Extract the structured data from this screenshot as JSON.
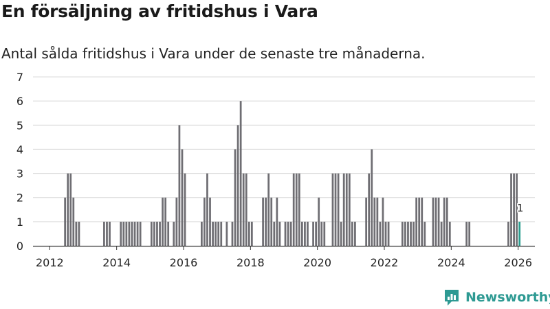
{
  "title": "En försäljning av fritidshus i Vara",
  "subtitle": "Antal sålda fritidshus i Vara under de senaste tre månaderna.",
  "brand": "Newsworthy",
  "colors": {
    "bar": "#6f6e73",
    "highlight": "#2a9d8f",
    "grid": "#d9d9d9",
    "axis": "#333333",
    "brand": "#2e9a93"
  },
  "chart_data": {
    "type": "bar",
    "ylim": [
      0,
      7
    ],
    "yticks": [
      0,
      1,
      2,
      3,
      4,
      5,
      6,
      7
    ],
    "xlim": [
      "2011-07",
      "2026-07"
    ],
    "xticks": [
      "2012",
      "2014",
      "2016",
      "2018",
      "2020",
      "2022",
      "2024",
      "2026"
    ],
    "grid": true,
    "series": [
      {
        "values": [
          [
            "2012-06",
            2
          ],
          [
            "2012-07",
            3
          ],
          [
            "2012-08",
            3
          ],
          [
            "2012-09",
            2
          ],
          [
            "2012-10",
            1
          ],
          [
            "2012-11",
            1
          ],
          [
            "2013-08",
            1
          ],
          [
            "2013-09",
            1
          ],
          [
            "2013-10",
            1
          ],
          [
            "2014-02",
            1
          ],
          [
            "2014-03",
            1
          ],
          [
            "2014-04",
            1
          ],
          [
            "2014-05",
            1
          ],
          [
            "2014-06",
            1
          ],
          [
            "2014-07",
            1
          ],
          [
            "2014-08",
            1
          ],
          [
            "2014-09",
            1
          ],
          [
            "2015-01",
            1
          ],
          [
            "2015-02",
            1
          ],
          [
            "2015-03",
            1
          ],
          [
            "2015-04",
            1
          ],
          [
            "2015-05",
            2
          ],
          [
            "2015-06",
            2
          ],
          [
            "2015-07",
            1
          ],
          [
            "2015-09",
            1
          ],
          [
            "2015-10",
            2
          ],
          [
            "2015-11",
            5
          ],
          [
            "2015-12",
            4
          ],
          [
            "2016-01",
            3
          ],
          [
            "2016-07",
            1
          ],
          [
            "2016-08",
            2
          ],
          [
            "2016-09",
            3
          ],
          [
            "2016-10",
            2
          ],
          [
            "2016-11",
            1
          ],
          [
            "2016-12",
            1
          ],
          [
            "2017-01",
            1
          ],
          [
            "2017-02",
            1
          ],
          [
            "2017-04",
            1
          ],
          [
            "2017-06",
            1
          ],
          [
            "2017-07",
            4
          ],
          [
            "2017-08",
            5
          ],
          [
            "2017-09",
            6
          ],
          [
            "2017-10",
            3
          ],
          [
            "2017-11",
            3
          ],
          [
            "2017-12",
            1
          ],
          [
            "2018-01",
            1
          ],
          [
            "2018-05",
            2
          ],
          [
            "2018-06",
            2
          ],
          [
            "2018-07",
            3
          ],
          [
            "2018-08",
            2
          ],
          [
            "2018-09",
            1
          ],
          [
            "2018-10",
            2
          ],
          [
            "2018-11",
            1
          ],
          [
            "2019-01",
            1
          ],
          [
            "2019-02",
            1
          ],
          [
            "2019-03",
            1
          ],
          [
            "2019-04",
            3
          ],
          [
            "2019-05",
            3
          ],
          [
            "2019-06",
            3
          ],
          [
            "2019-07",
            1
          ],
          [
            "2019-08",
            1
          ],
          [
            "2019-09",
            1
          ],
          [
            "2019-11",
            1
          ],
          [
            "2019-12",
            1
          ],
          [
            "2020-01",
            2
          ],
          [
            "2020-02",
            1
          ],
          [
            "2020-03",
            1
          ],
          [
            "2020-06",
            3
          ],
          [
            "2020-07",
            3
          ],
          [
            "2020-08",
            3
          ],
          [
            "2020-09",
            1
          ],
          [
            "2020-10",
            3
          ],
          [
            "2020-11",
            3
          ],
          [
            "2020-12",
            3
          ],
          [
            "2021-01",
            1
          ],
          [
            "2021-02",
            1
          ],
          [
            "2021-06",
            2
          ],
          [
            "2021-07",
            3
          ],
          [
            "2021-08",
            4
          ],
          [
            "2021-09",
            2
          ],
          [
            "2021-10",
            2
          ],
          [
            "2021-11",
            1
          ],
          [
            "2021-12",
            2
          ],
          [
            "2022-01",
            1
          ],
          [
            "2022-02",
            1
          ],
          [
            "2022-07",
            1
          ],
          [
            "2022-08",
            1
          ],
          [
            "2022-09",
            1
          ],
          [
            "2022-10",
            1
          ],
          [
            "2022-11",
            1
          ],
          [
            "2022-12",
            2
          ],
          [
            "2023-01",
            2
          ],
          [
            "2023-02",
            2
          ],
          [
            "2023-03",
            1
          ],
          [
            "2023-06",
            2
          ],
          [
            "2023-07",
            2
          ],
          [
            "2023-08",
            2
          ],
          [
            "2023-09",
            1
          ],
          [
            "2023-10",
            2
          ],
          [
            "2023-11",
            2
          ],
          [
            "2023-12",
            1
          ],
          [
            "2024-06",
            1
          ],
          [
            "2024-07",
            1
          ],
          [
            "2025-09",
            1
          ],
          [
            "2025-10",
            3
          ],
          [
            "2025-11",
            3
          ],
          [
            "2025-12",
            3
          ]
        ]
      }
    ],
    "highlight": {
      "x": "2026-01",
      "value": 1,
      "label": "1"
    }
  }
}
